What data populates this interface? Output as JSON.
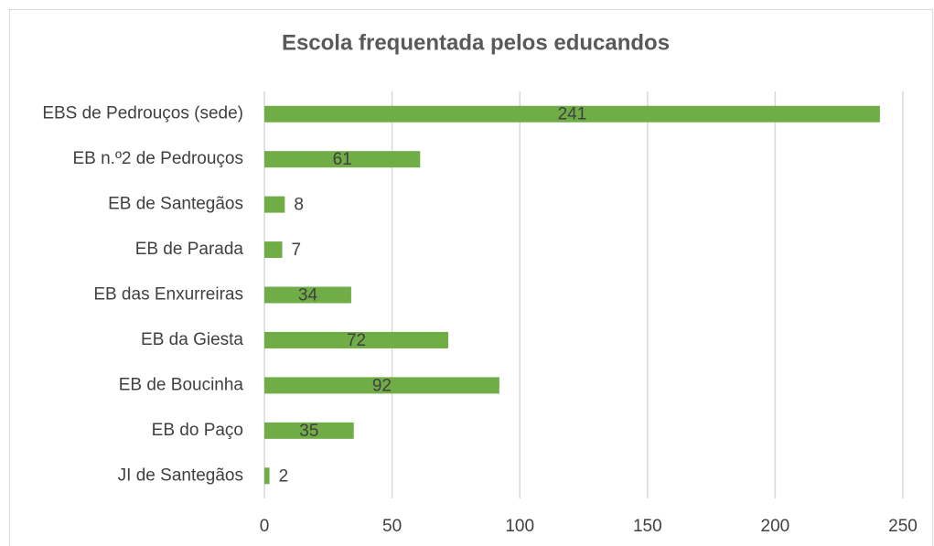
{
  "chart_data": {
    "type": "bar",
    "orientation": "horizontal",
    "title": "Escola frequentada pelos educandos",
    "categories": [
      "EBS de Pedrouços (sede)",
      "EB n.º2 de Pedrouços",
      "EB de Santegãos",
      "EB de Parada",
      "EB das Enxurreiras",
      "EB da Giesta",
      "EB de Boucinha",
      "EB do Paço",
      "JI de Santegãos"
    ],
    "values": [
      241,
      61,
      8,
      7,
      34,
      72,
      92,
      35,
      2
    ],
    "color": "#70ad47",
    "xlim": [
      0,
      250
    ],
    "xticks": [
      0,
      50,
      100,
      150,
      200,
      250
    ],
    "grid": true
  }
}
